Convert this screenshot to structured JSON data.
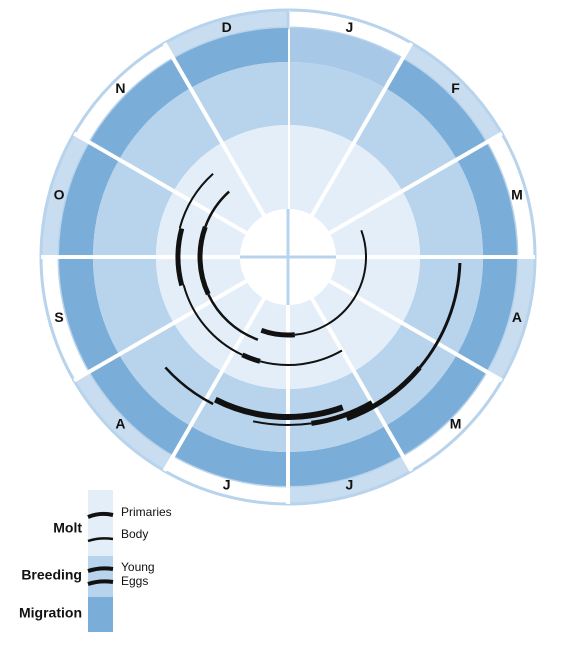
{
  "months": [
    "J",
    "F",
    "M",
    "A",
    "M",
    "J",
    "J",
    "A",
    "S",
    "O",
    "N",
    "D"
  ],
  "legend": {
    "molt": {
      "label": "Molt",
      "items": [
        "Primaries",
        "Body"
      ]
    },
    "breeding": {
      "label": "Breeding",
      "items": [
        "Young",
        "Eggs"
      ]
    },
    "migration": {
      "label": "Migration"
    }
  }
}
